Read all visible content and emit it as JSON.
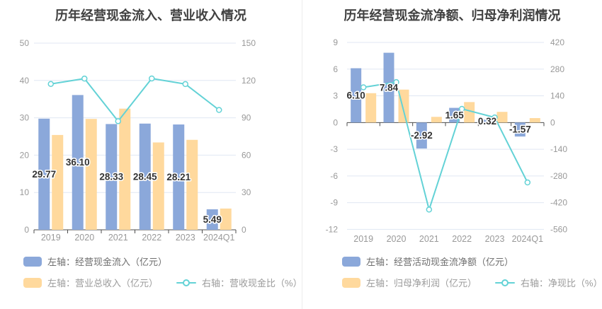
{
  "page": {
    "background": "#ffffff",
    "divider_color": "#ececec"
  },
  "palette": {
    "bar_blue": "#8ba8da",
    "bar_orange": "#ffd99d",
    "line_teal": "#63d2d6",
    "grid": "#e0e7f3",
    "axis": "#4d4d4d",
    "tick_text": "#999999",
    "title_text": "#404040",
    "bar_label_text": "#333333"
  },
  "charts": [
    {
      "title": "历年经营现金流入、营业收入情况",
      "chart_data": {
        "type": "combo",
        "categories": [
          "2019",
          "2020",
          "2021",
          "2022",
          "2023",
          "2024Q1"
        ],
        "series": [
          {
            "name": "左轴：经营现金流入（亿元）",
            "kind": "bar",
            "axis": "left",
            "color": "#8ba8da",
            "values": [
              29.77,
              36.1,
              28.33,
              28.45,
              28.21,
              5.49
            ],
            "labels": [
              "29.77",
              "36.10",
              "28.33",
              "28.45",
              "28.21",
              "5.49"
            ]
          },
          {
            "name": "左轴：营业总收入（亿元）",
            "kind": "bar",
            "axis": "left",
            "color": "#ffd99d",
            "values": [
              25.4,
              29.7,
              32.45,
              23.4,
              24.1,
              5.7
            ]
          },
          {
            "name": "右轴：营收现金比（%）",
            "kind": "line",
            "axis": "right",
            "color": "#63d2d6",
            "values": [
              117.2,
              121.5,
              87.3,
              121.6,
              117.1,
              96.3
            ]
          }
        ],
        "left_axis": {
          "min": 0,
          "max": 50,
          "ticks": [
            50,
            40,
            30,
            20,
            10,
            0
          ]
        },
        "right_axis": {
          "min": 0,
          "max": 150,
          "ticks": [
            150,
            120,
            90,
            60,
            30,
            0
          ]
        },
        "grid": true,
        "legend_position": "bottom"
      }
    },
    {
      "title": "历年经营现金流净额、归母净利润情况",
      "chart_data": {
        "type": "combo",
        "categories": [
          "2019",
          "2020",
          "2021",
          "2022",
          "2023",
          "2024Q1"
        ],
        "series": [
          {
            "name": "左轴：经营活动现金流净额（亿元）",
            "kind": "bar",
            "axis": "left",
            "color": "#8ba8da",
            "values": [
              6.1,
              7.84,
              -2.92,
              1.65,
              0.32,
              -1.57
            ],
            "labels": [
              "6.10",
              "7.84",
              "-2.92",
              "1.65",
              "0.32",
              "-1.57"
            ]
          },
          {
            "name": "左轴：归母净利润（亿元）",
            "kind": "bar",
            "axis": "left",
            "color": "#ffd99d",
            "values": [
              3.3,
              3.7,
              0.64,
              2.3,
              1.2,
              0.5
            ]
          },
          {
            "name": "右轴：净现比（%）",
            "kind": "line",
            "axis": "right",
            "color": "#63d2d6",
            "values": [
              184.8,
              211.9,
              -456.3,
              71.7,
              26.7,
              -314.0
            ]
          }
        ],
        "left_axis": {
          "min": -12,
          "max": 9,
          "ticks": [
            9,
            6,
            3,
            0,
            -3,
            -6,
            -9,
            -12
          ]
        },
        "right_axis": {
          "min": -560,
          "max": 420,
          "ticks": [
            420,
            280,
            140,
            0,
            -140,
            -280,
            -420,
            -560
          ]
        },
        "grid": true,
        "legend_position": "bottom"
      }
    }
  ]
}
